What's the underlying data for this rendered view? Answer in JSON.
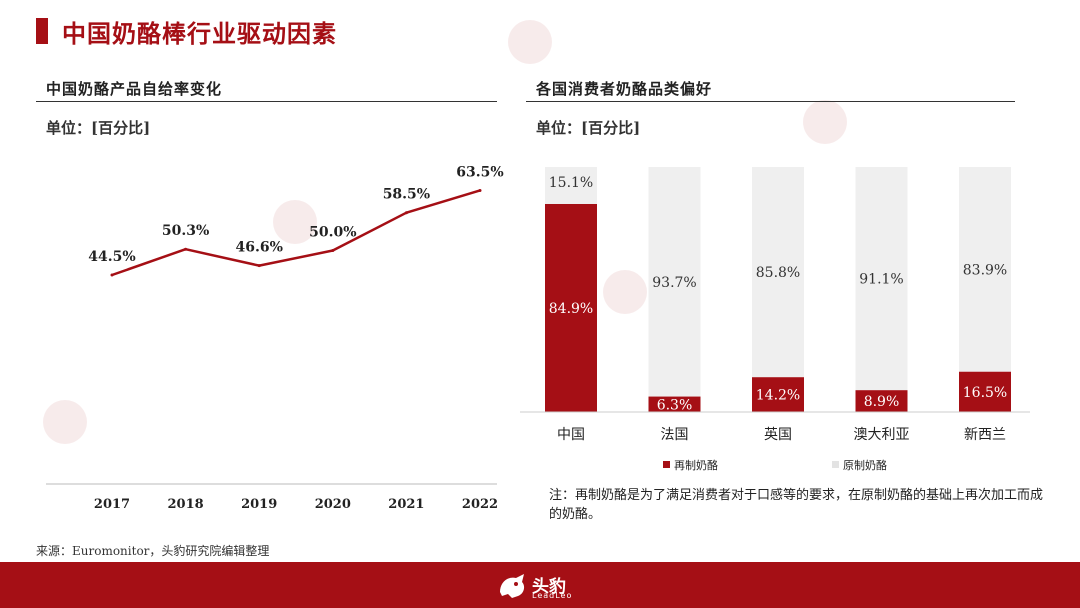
{
  "header": {
    "title": "中国奶酪棒行业驱动因素"
  },
  "left_panel": {
    "subtitle": "中国奶酪产品自给率变化",
    "unit": "单位：[百分比]"
  },
  "right_panel": {
    "subtitle": "各国消费者奶酪品类偏好",
    "unit": "单位：[百分比]",
    "note": "注：再制奶酪是为了满足消费者对于口感等的要求，在原制奶酪的基础上再次加工而成的奶酪。"
  },
  "source": "来源：Euromonitor，头豹研究院编辑整理",
  "footer": {
    "logo_text": "头豹",
    "logo_sub": "LeadLeo"
  },
  "colors": {
    "brand": "#a50f15",
    "bar_bg": "#efefef"
  },
  "chart_data": [
    {
      "type": "line",
      "x": [
        "2017",
        "2018",
        "2019",
        "2020",
        "2021",
        "2022"
      ],
      "series": [
        {
          "values": [
            44.5,
            50.3,
            46.6,
            50.0,
            58.5,
            63.5
          ]
        }
      ],
      "data_labels": [
        "44.5%",
        "50.3%",
        "46.6%",
        "50.0%",
        "58.5%",
        "63.5%"
      ],
      "ylim": [
        0,
        100
      ],
      "grid": false
    },
    {
      "type": "bar",
      "stacked": true,
      "categories": [
        "中国",
        "法国",
        "英国",
        "澳大利亚",
        "新西兰"
      ],
      "series": [
        {
          "name": "再制奶酪",
          "color": "#a50f15",
          "values": [
            84.9,
            6.3,
            14.2,
            8.9,
            16.5
          ],
          "labels": [
            "84.9%",
            "6.3%",
            "14.2%",
            "8.9%",
            "16.5%"
          ]
        },
        {
          "name": "原制奶酪",
          "color": "#efefef",
          "values": [
            15.1,
            93.7,
            85.8,
            91.1,
            83.9
          ],
          "labels": [
            "15.1%",
            "93.7%",
            "85.8%",
            "91.1%",
            "83.9%"
          ]
        }
      ],
      "ylim": [
        0,
        100
      ],
      "legend": "bottom"
    }
  ]
}
